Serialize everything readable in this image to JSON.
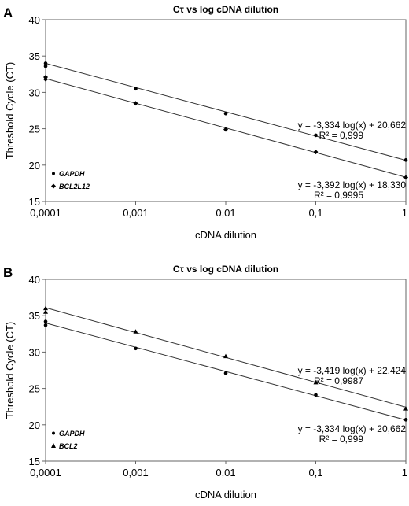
{
  "chart_data": [
    {
      "panel_label": "A",
      "type": "scatter",
      "title": "Cτ vs log cDNA dilution",
      "xlabel": "cDNA dilution",
      "ylabel": "Threshold Cycle (CT)",
      "x_scale": "log",
      "xlim": [
        0.0001,
        1
      ],
      "ylim": [
        15,
        40
      ],
      "xticks": [
        "0,0001",
        "0,001",
        "0,01",
        "0,1",
        "1"
      ],
      "yticks": [
        "15",
        "20",
        "25",
        "30",
        "35",
        "40"
      ],
      "grid": false,
      "legend": "bottom-left",
      "series": [
        {
          "name": "GAPDH",
          "marker": "circle",
          "x": [
            0.0001,
            0.0001,
            0.001,
            0.01,
            0.1,
            1
          ],
          "y": [
            34.0,
            33.6,
            30.5,
            27.1,
            24.1,
            20.7
          ],
          "fit": {
            "slope": -3.334,
            "intercept": 20.662
          },
          "equation": "y = -3,334 log(x) + 20,662",
          "r2": "R² = 0,999"
        },
        {
          "name": "BCL2L12",
          "marker": "diamond",
          "x": [
            0.0001,
            0.0001,
            0.001,
            0.01,
            0.1,
            1
          ],
          "y": [
            32.1,
            31.8,
            28.5,
            24.9,
            21.8,
            18.3
          ],
          "fit": {
            "slope": -3.392,
            "intercept": 18.33
          },
          "equation": "y = -3,392 log(x) + 18,330",
          "r2": "R² = 0,9995"
        }
      ]
    },
    {
      "panel_label": "B",
      "type": "scatter",
      "title": "Cτ vs log cDNA dilution",
      "xlabel": "cDNA dilution",
      "ylabel": "Threshold Cycle (CT)",
      "x_scale": "log",
      "xlim": [
        0.0001,
        1
      ],
      "ylim": [
        15,
        40
      ],
      "xticks": [
        "0,0001",
        "0,001",
        "0,01",
        "0,1",
        "1"
      ],
      "yticks": [
        "15",
        "20",
        "25",
        "30",
        "35",
        "40"
      ],
      "grid": false,
      "legend": "bottom-left",
      "series": [
        {
          "name": "GAPDH",
          "marker": "circle",
          "x": [
            0.0001,
            0.0001,
            0.001,
            0.01,
            0.1,
            1
          ],
          "y": [
            34.2,
            33.7,
            30.5,
            27.1,
            24.1,
            20.7
          ],
          "fit": {
            "slope": -3.334,
            "intercept": 20.662
          },
          "equation": "y = -3,334 log(x) + 20,662",
          "r2": "R² = 0,999"
        },
        {
          "name": "BCL2",
          "marker": "triangle",
          "x": [
            0.0001,
            0.0001,
            0.001,
            0.01,
            0.1,
            1
          ],
          "y": [
            36.0,
            35.5,
            32.8,
            29.4,
            25.8,
            22.2
          ],
          "fit": {
            "slope": -3.419,
            "intercept": 22.424
          },
          "equation": "y = -3,419 log(x) + 22,424",
          "r2": "R² = 0,9987"
        }
      ]
    }
  ]
}
